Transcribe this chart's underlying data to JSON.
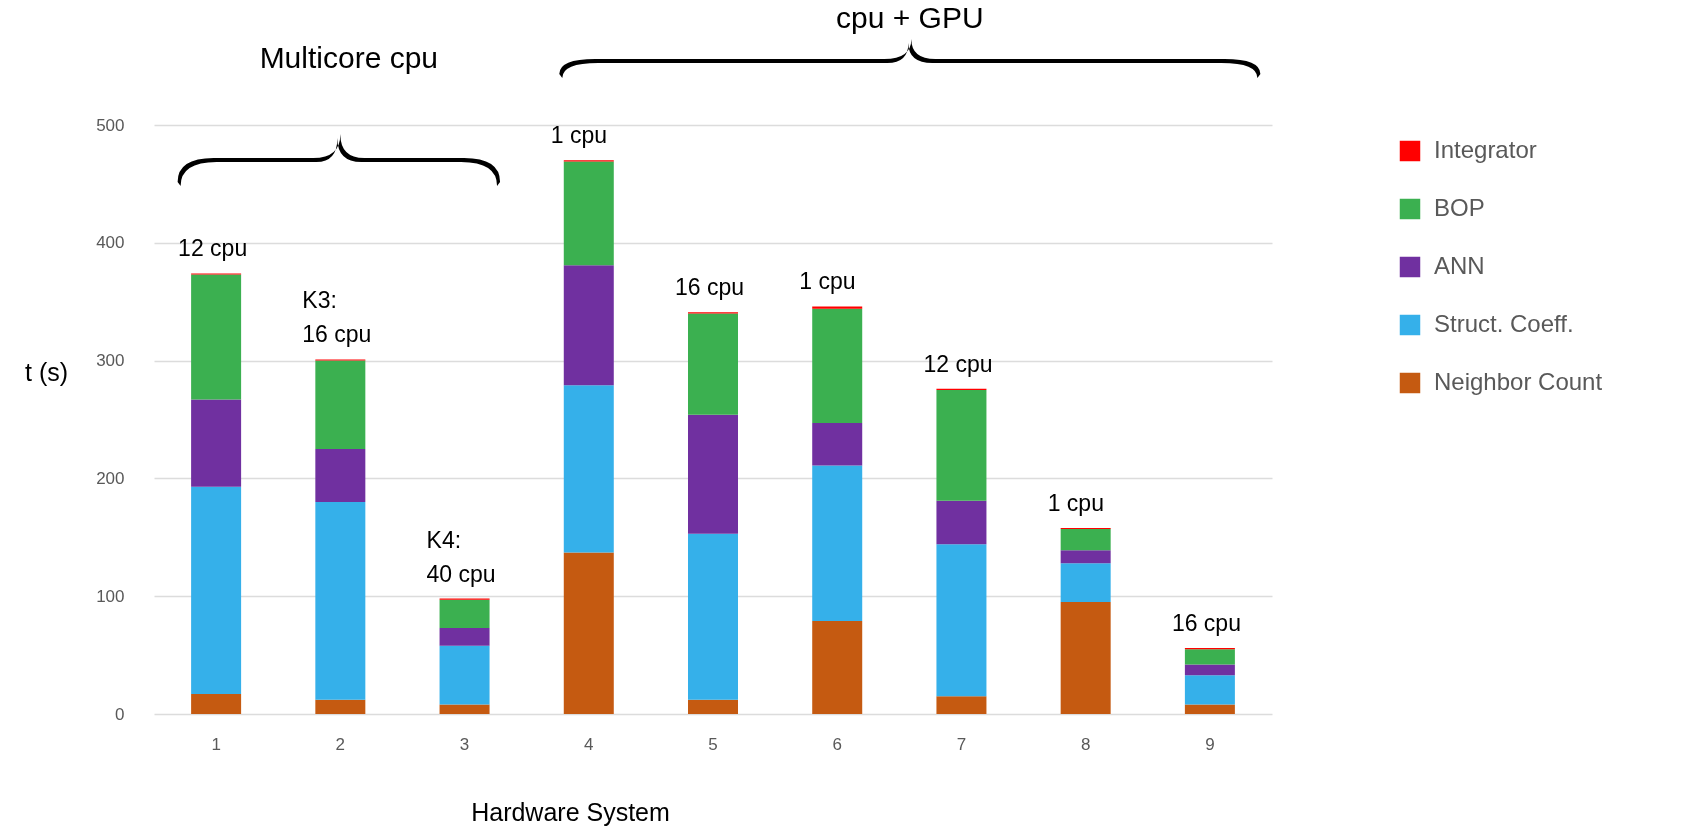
{
  "chart_data": {
    "type": "bar",
    "stacked": true,
    "xlabel": "Hardware System",
    "ylabel": "t (s)",
    "categories": [
      "1",
      "2",
      "3",
      "4",
      "5",
      "6",
      "7",
      "8",
      "9"
    ],
    "series": [
      {
        "name": "Neighbor Count",
        "color": "#c55a11",
        "values": [
          17,
          12,
          8,
          137,
          12,
          79,
          15,
          95,
          8
        ]
      },
      {
        "name": "Struct. Coeff.",
        "color": "#35b0ea",
        "values": [
          176,
          168,
          50,
          142,
          141,
          132,
          129,
          33,
          25
        ]
      },
      {
        "name": "ANN",
        "color": "#7030a0",
        "values": [
          74,
          45,
          15,
          102,
          101,
          36,
          37,
          11,
          9
        ]
      },
      {
        "name": "BOP",
        "color": "#3bb050",
        "values": [
          106,
          75,
          24,
          88,
          86,
          97,
          94,
          18,
          13
        ]
      },
      {
        "name": "Integrator",
        "color": "#ff0000",
        "values": [
          1,
          1,
          1,
          1,
          1,
          2,
          1,
          1,
          1
        ]
      }
    ],
    "ylim": [
      0,
      500
    ],
    "yticks": [
      0,
      100,
      200,
      300,
      400,
      500
    ],
    "grid": "y",
    "legend": "right",
    "annotations": [
      "Multicore cpu",
      "cpu + GPU",
      {
        "text": "12 cpu",
        "x": "1",
        "y": 374
      },
      {
        "text": "K3:\n16 cpu",
        "x": "2",
        "y": 301
      },
      {
        "text": "K4:\n40 cpu",
        "x": "3",
        "y": 98
      },
      {
        "text": "1 cpu",
        "x": "4",
        "y": 470
      },
      {
        "text": "16 cpu",
        "x": "5",
        "y": 341
      },
      {
        "text": "1 cpu",
        "x": "6",
        "y": 346
      },
      {
        "text": "12 cpu",
        "x": "7",
        "y": 276
      },
      {
        "text": "1 cpu",
        "x": "8",
        "y": 158
      },
      {
        "text": "16 cpu",
        "x": "9",
        "y": 56
      }
    ]
  }
}
